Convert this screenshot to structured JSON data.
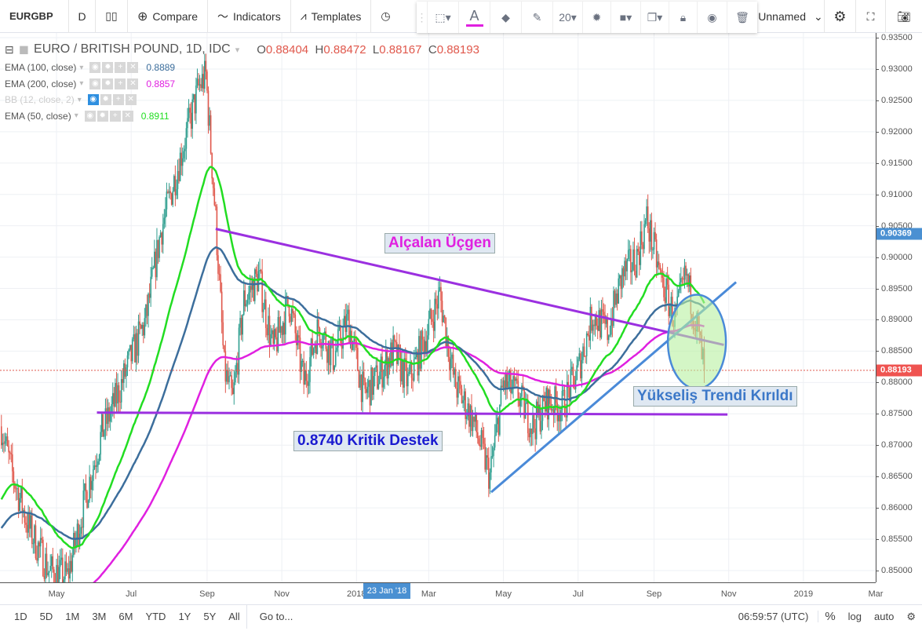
{
  "toolbar": {
    "symbol": "EURGBP",
    "interval": "D",
    "compare": "Compare",
    "indicators": "Indicators",
    "templates": "Templates",
    "font_size": "20",
    "layout_name": "Unnamed"
  },
  "legend": {
    "title": "EURO / BRITISH POUND, 1D, IDC",
    "o_label": "O",
    "o": "0.88404",
    "h_label": "H",
    "h": "0.88472",
    "l_label": "L",
    "l": "0.88167",
    "c_label": "C",
    "c": "0.88193",
    "indicators": [
      {
        "name": "EMA (100, close)",
        "value": "0.8889",
        "color": "#3c6e9c"
      },
      {
        "name": "EMA (200, close)",
        "value": "0.8857",
        "color": "#e020e0"
      },
      {
        "name": "BB (12, close, 2)",
        "value": "",
        "color": "#cccccc"
      },
      {
        "name": "EMA (50, close)",
        "value": "0.8911",
        "color": "#22dd22"
      }
    ]
  },
  "bottom": {
    "ranges": [
      "1D",
      "5D",
      "1M",
      "3M",
      "6M",
      "YTD",
      "1Y",
      "5Y",
      "All"
    ],
    "goto": "Go to...",
    "time": "06:59:57 (UTC)",
    "percent": "%",
    "log": "log",
    "auto": "auto"
  },
  "chart_data": {
    "type": "candlestick",
    "symbol": "EURGBP",
    "ylim": [
      0.8475,
      0.9355
    ],
    "y_ticks": [
      "0.93500",
      "0.93000",
      "0.92500",
      "0.92000",
      "0.91500",
      "0.91000",
      "0.90500",
      "0.90000",
      "0.89500",
      "0.89000",
      "0.88500",
      "0.88000",
      "0.87500",
      "0.87000",
      "0.86500",
      "0.86000",
      "0.85500",
      "0.85000"
    ],
    "x_ticks": [
      "May",
      "Jul",
      "Sep",
      "Nov",
      "2018",
      "Mar",
      "May",
      "Jul",
      "Sep",
      "Nov",
      "2019",
      "Mar"
    ],
    "crosshair_date": "23 Jan '18",
    "last_price": "0.88193",
    "last_price_color": "#ef5350",
    "ema_tag": "0.90369",
    "ema_tag_color": "#4a90d2",
    "up_color": "#2f9e8f",
    "down_color": "#e0584c",
    "price_path": [
      [
        "2017-03-17",
        0.873
      ],
      [
        "2017-03-25",
        0.866
      ],
      [
        "2017-04-08",
        0.857
      ],
      [
        "2017-04-25",
        0.85
      ],
      [
        "2017-05-10",
        0.849
      ],
      [
        "2017-05-25",
        0.862
      ],
      [
        "2017-06-07",
        0.872
      ],
      [
        "2017-06-16",
        0.876
      ],
      [
        "2017-07-01",
        0.884
      ],
      [
        "2017-07-13",
        0.89
      ],
      [
        "2017-07-25",
        0.904
      ],
      [
        "2017-08-13",
        0.918
      ],
      [
        "2017-08-25",
        0.927
      ],
      [
        "2017-08-31",
        0.929
      ],
      [
        "2017-09-08",
        0.906
      ],
      [
        "2017-09-15",
        0.882
      ],
      [
        "2017-09-22",
        0.877
      ],
      [
        "2017-10-01",
        0.893
      ],
      [
        "2017-10-13",
        0.897
      ],
      [
        "2017-10-25",
        0.885
      ],
      [
        "2017-11-07",
        0.893
      ],
      [
        "2017-11-19",
        0.88
      ],
      [
        "2017-12-01",
        0.889
      ],
      [
        "2017-12-13",
        0.884
      ],
      [
        "2017-12-25",
        0.89
      ],
      [
        "2018-01-07",
        0.878
      ],
      [
        "2018-01-19",
        0.881
      ],
      [
        "2018-01-31",
        0.885
      ],
      [
        "2018-02-12",
        0.88
      ],
      [
        "2018-02-24",
        0.886
      ],
      [
        "2018-03-10",
        0.894
      ],
      [
        "2018-03-22",
        0.88
      ],
      [
        "2018-04-06",
        0.874
      ],
      [
        "2018-04-20",
        0.865
      ],
      [
        "2018-05-01",
        0.88
      ],
      [
        "2018-05-13",
        0.878
      ],
      [
        "2018-05-25",
        0.873
      ],
      [
        "2018-06-06",
        0.877
      ],
      [
        "2018-06-18",
        0.876
      ],
      [
        "2018-07-01",
        0.882
      ],
      [
        "2018-07-13",
        0.891
      ],
      [
        "2018-07-25",
        0.888
      ],
      [
        "2018-08-06",
        0.897
      ],
      [
        "2018-08-18",
        0.9
      ],
      [
        "2018-08-26",
        0.906
      ],
      [
        "2018-09-06",
        0.897
      ],
      [
        "2018-09-18",
        0.89
      ],
      [
        "2018-09-27",
        0.897
      ],
      [
        "2018-10-06",
        0.889
      ],
      [
        "2018-10-12",
        0.8819
      ]
    ],
    "drawings": [
      {
        "type": "trendline",
        "color": "#9b30e0",
        "from": [
          "2017-09-08",
          0.9045
        ],
        "to": [
          "2018-10-28",
          0.886
        ]
      },
      {
        "type": "trendline",
        "color": "#9b30e0",
        "from": [
          "2017-06-03",
          0.8752
        ],
        "to": [
          "2018-10-31",
          0.8749
        ]
      },
      {
        "type": "trendline",
        "color": "#4a8ad8",
        "from": [
          "2018-04-21",
          0.8625
        ],
        "to": [
          "2018-11-07",
          0.896
        ]
      },
      {
        "type": "ellipse",
        "color": "#4a8ad8",
        "fill": "#b8f0a0",
        "center": [
          "2018-10-06",
          0.8865
        ],
        "price_radius": 0.0075
      }
    ],
    "notes": [
      {
        "text": "Alçalan Üçgen",
        "color": "#e020e0"
      },
      {
        "text": "0.8740 Kritik Destek",
        "color": "#1a1ad0"
      },
      {
        "text": "Yükseliş Trendi Kırıldı",
        "color": "#3c78c8"
      }
    ]
  }
}
